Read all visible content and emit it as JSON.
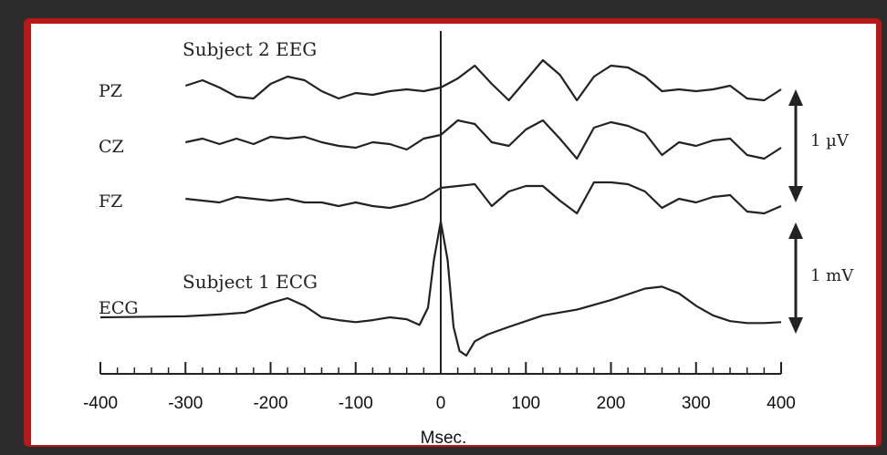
{
  "chart_data": {
    "type": "line",
    "x_unit_label": "Msec.",
    "xlim": [
      -400,
      400
    ],
    "x_ticks": [
      -400,
      -300,
      -200,
      -100,
      0,
      100,
      200,
      300,
      400
    ],
    "x_tick_labels": [
      "-400",
      "-300",
      "-200",
      "-100",
      "0",
      "100",
      "200",
      "300",
      "400"
    ],
    "annotations": [
      {
        "text": "Subject 2 EEG"
      },
      {
        "text": "Subject 1 ECG"
      }
    ],
    "scale_bars": [
      {
        "label": "1 µV",
        "applies_to": "EEG"
      },
      {
        "label": "1 mV",
        "applies_to": "ECG"
      }
    ],
    "colors": {
      "trace": "#222222",
      "frame_red": "#b81818",
      "frame_dark": "#2c2c2c"
    },
    "series": [
      {
        "name": "PZ",
        "group": "EEG",
        "x": [
          -300,
          -280,
          -260,
          -240,
          -220,
          -200,
          -180,
          -160,
          -140,
          -120,
          -100,
          -80,
          -60,
          -40,
          -20,
          0,
          20,
          40,
          60,
          80,
          100,
          120,
          140,
          160,
          180,
          200,
          220,
          240,
          260,
          280,
          300,
          320,
          340,
          360,
          380,
          400
        ],
        "y": [
          0.05,
          0.2,
          0.0,
          -0.25,
          -0.3,
          0.1,
          0.3,
          0.2,
          -0.1,
          -0.3,
          -0.15,
          -0.2,
          -0.1,
          -0.05,
          -0.1,
          0.0,
          0.25,
          0.6,
          0.1,
          -0.35,
          0.2,
          0.75,
          0.35,
          -0.35,
          0.3,
          0.6,
          0.55,
          0.3,
          -0.1,
          -0.05,
          -0.1,
          -0.05,
          0.05,
          -0.3,
          -0.35,
          -0.05
        ]
      },
      {
        "name": "CZ",
        "group": "EEG",
        "x": [
          -300,
          -280,
          -260,
          -240,
          -220,
          -200,
          -180,
          -160,
          -140,
          -120,
          -100,
          -80,
          -60,
          -40,
          -20,
          0,
          20,
          40,
          60,
          80,
          100,
          120,
          140,
          160,
          180,
          200,
          220,
          240,
          260,
          280,
          300,
          320,
          340,
          360,
          380,
          400
        ],
        "y": [
          0.0,
          0.1,
          -0.05,
          0.1,
          -0.05,
          0.15,
          0.1,
          0.15,
          0.0,
          -0.1,
          -0.15,
          0.0,
          -0.05,
          -0.2,
          0.1,
          0.2,
          0.6,
          0.5,
          0.0,
          -0.1,
          0.35,
          0.6,
          0.1,
          -0.45,
          0.4,
          0.55,
          0.45,
          0.25,
          -0.35,
          0.0,
          -0.1,
          0.05,
          0.1,
          -0.35,
          -0.45,
          -0.15
        ]
      },
      {
        "name": "FZ",
        "group": "EEG",
        "x": [
          -300,
          -280,
          -260,
          -240,
          -220,
          -200,
          -180,
          -160,
          -140,
          -120,
          -100,
          -80,
          -60,
          -40,
          -20,
          0,
          20,
          40,
          60,
          80,
          100,
          120,
          140,
          160,
          180,
          200,
          220,
          240,
          260,
          280,
          300,
          320,
          340,
          360,
          380,
          400
        ],
        "y": [
          0.0,
          -0.05,
          -0.1,
          0.05,
          0.0,
          -0.05,
          0.0,
          -0.1,
          -0.1,
          -0.2,
          -0.1,
          -0.2,
          -0.25,
          -0.15,
          0.0,
          0.3,
          0.35,
          0.4,
          -0.2,
          0.2,
          0.35,
          0.35,
          -0.05,
          -0.4,
          0.45,
          0.45,
          0.4,
          0.2,
          -0.25,
          0.0,
          -0.1,
          0.05,
          0.1,
          -0.35,
          -0.4,
          -0.2
        ]
      },
      {
        "name": "ECG",
        "group": "ECG",
        "x": [
          -400,
          -300,
          -260,
          -230,
          -200,
          -180,
          -160,
          -140,
          -120,
          -100,
          -80,
          -60,
          -40,
          -25,
          -15,
          -8,
          0,
          8,
          15,
          22,
          30,
          40,
          55,
          80,
          120,
          160,
          200,
          240,
          260,
          280,
          300,
          320,
          340,
          360,
          380,
          400
        ],
        "y": [
          0.0,
          0.01,
          0.03,
          0.05,
          0.15,
          0.2,
          0.12,
          0.0,
          -0.03,
          -0.05,
          -0.03,
          0.0,
          -0.02,
          -0.08,
          0.1,
          0.6,
          1.0,
          0.6,
          -0.1,
          -0.35,
          -0.4,
          -0.25,
          -0.18,
          -0.1,
          0.02,
          0.08,
          0.18,
          0.3,
          0.32,
          0.25,
          0.12,
          0.02,
          -0.04,
          -0.06,
          -0.06,
          -0.05
        ]
      }
    ]
  }
}
